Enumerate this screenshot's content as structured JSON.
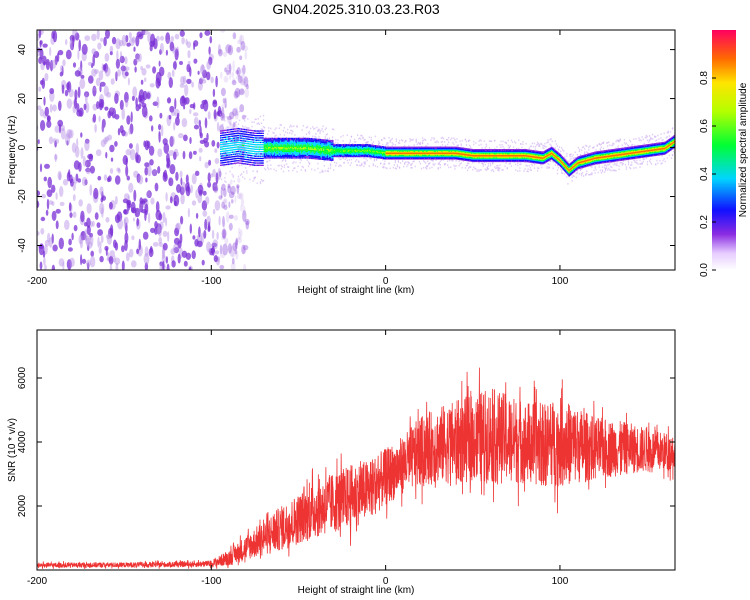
{
  "figure": {
    "title": "GN04.2025.310.03.23.R03"
  },
  "colors": {
    "spectrogram_sparse": "#b48ce6",
    "spectrogram_dense": "#7a2fd6",
    "snr_line": "#ee3333",
    "axis": "#000000"
  },
  "chart_data": [
    {
      "type": "heatmap",
      "xlabel": "Height of straight line (km)",
      "ylabel": "Frequency (Hz)",
      "xlim": [
        -200,
        166
      ],
      "ylim": [
        -50,
        48
      ],
      "x_ticks": [
        -200,
        -100,
        0,
        100
      ],
      "x_tick_labels": [
        "-200",
        "-100",
        "0",
        "100"
      ],
      "y_ticks": [
        -40,
        -20,
        0,
        20,
        40
      ],
      "y_tick_labels": [
        "-40",
        "-20",
        "0",
        "20",
        "40"
      ],
      "noise_region_x": [
        -200,
        -82
      ],
      "signal_onset_x": -95,
      "signal_track": {
        "x": [
          -95,
          -85,
          -75,
          -60,
          -45,
          -30,
          -20,
          -10,
          0,
          10,
          20,
          30,
          40,
          50,
          60,
          70,
          80,
          90,
          95,
          100,
          105,
          110,
          120,
          130,
          140,
          150,
          160,
          166
        ],
        "freq": [
          0,
          1,
          0,
          0,
          0,
          -1,
          -1,
          -1,
          -2,
          -2,
          -2,
          -2,
          -2,
          -3,
          -3,
          -3,
          -3,
          -4,
          -2,
          -5,
          -9,
          -6,
          -4,
          -3,
          -2,
          -1,
          0,
          3
        ]
      },
      "colorbar": {
        "label": "Normalized spectral amplitude",
        "range": [
          0,
          1
        ],
        "ticks": [
          0.0,
          0.2,
          0.4,
          0.6,
          0.8
        ],
        "tick_labels": [
          "0.0",
          "0.2",
          "0.4",
          "0.6",
          "0.8"
        ]
      },
      "grid": false
    },
    {
      "type": "line",
      "xlabel": "Height of straight line (km)",
      "ylabel": "SNR (10 * v/v)",
      "xlim": [
        -200,
        166
      ],
      "ylim": [
        0,
        7500
      ],
      "x_ticks": [
        -200,
        -100,
        0,
        100
      ],
      "x_tick_labels": [
        "-200",
        "-100",
        "0",
        "100"
      ],
      "y_ticks": [
        2000,
        4000,
        6000
      ],
      "y_tick_labels": [
        "2000",
        "4000",
        "6000"
      ],
      "series": [
        {
          "x": [
            -200,
            -150,
            -110,
            -100,
            -90,
            -80,
            -70,
            -60,
            -50,
            -40,
            -30,
            -20,
            -10,
            0,
            10,
            20,
            30,
            40,
            50,
            60,
            70,
            80,
            90,
            100,
            110,
            120,
            130,
            140,
            150,
            160,
            166
          ],
          "mean": [
            150,
            160,
            180,
            200,
            380,
            700,
            1000,
            1300,
            1600,
            1900,
            2100,
            2300,
            2500,
            2900,
            3300,
            3700,
            3900,
            4000,
            4100,
            4200,
            4100,
            4000,
            3900,
            4000,
            3900,
            3800,
            3800,
            3800,
            3750,
            3700,
            3700
          ],
          "spread": [
            80,
            80,
            90,
            100,
            250,
            400,
            550,
            700,
            800,
            900,
            950,
            1000,
            950,
            900,
            900,
            1100,
            1200,
            1300,
            1400,
            1500,
            1400,
            1300,
            1300,
            1400,
            1200,
            1000,
            900,
            800,
            700,
            600,
            600
          ]
        }
      ],
      "grid": false
    }
  ]
}
